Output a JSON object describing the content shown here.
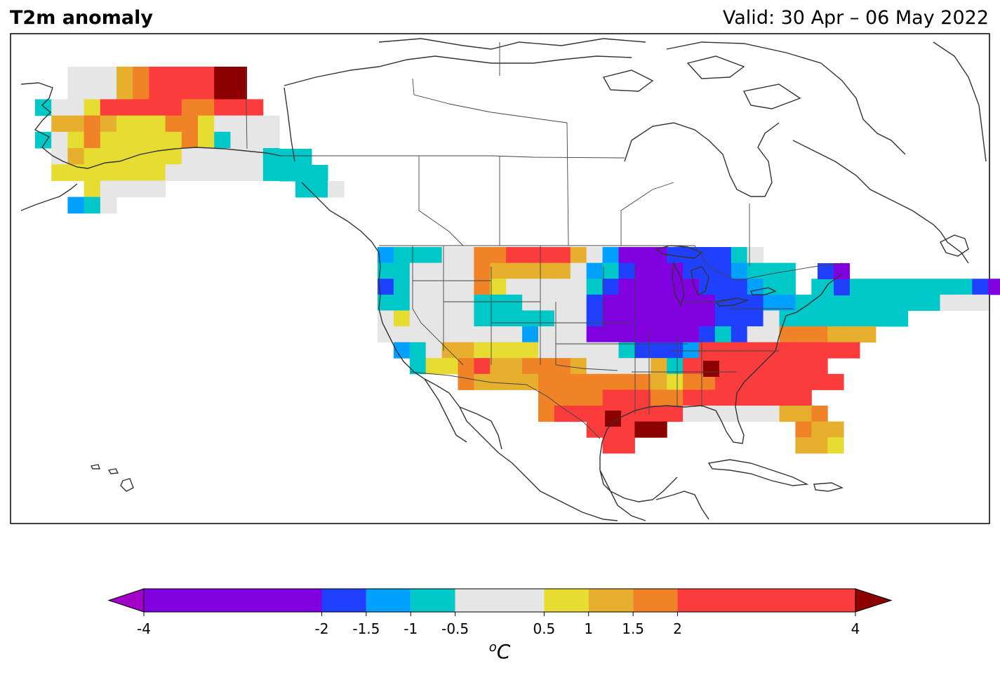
{
  "header": {
    "title": "T2m anomaly",
    "valid": "Valid: 30 Apr – 06 May 2022"
  },
  "colorbar": {
    "unit_label": "oC",
    "unit_base": "C",
    "unit_sup": "o",
    "ticks": [
      "-4",
      "-2",
      "-1.5",
      "-1",
      "-0.5",
      "0.5",
      "1",
      "1.5",
      "2",
      "4"
    ],
    "tick_values": [
      -4,
      -2,
      -1.5,
      -1,
      -0.5,
      0.5,
      1,
      1.5,
      2,
      4
    ],
    "extend": "both",
    "colors": {
      "under": "#a000c8",
      "b_-4_-2": "#8000e0",
      "b_-2_-1.5": "#2040ff",
      "b_-1.5_-1": "#00a0ff",
      "b_-1_-0.5": "#00c8c8",
      "b_-0.5_0.5": "#e6e6e6",
      "b_0.5_1": "#e6dc32",
      "b_1_1.5": "#e6af2d",
      "b_1.5_2": "#f08228",
      "b_2_4": "#fa3c3c",
      "over": "#8c0000"
    }
  },
  "map_data": {
    "region": "North America",
    "variable": "T2m anomaly",
    "cells": {
      "alaska": [
        {
          "lat": 70.5,
          "lon": -160,
          "anom": "white"
        },
        {
          "lat": 70.5,
          "lon": -150,
          "anom": "orange"
        },
        {
          "lat": 70.5,
          "lon": -145,
          "anom": "red"
        },
        {
          "lat": 70.5,
          "lon": -141,
          "anom": "darkred"
        },
        {
          "lat": 67,
          "lon": -155,
          "anom": "red"
        },
        {
          "lat": 64,
          "lon": -160,
          "anom": "yellow"
        },
        {
          "lat": 62,
          "lon": -150,
          "anom": "yellow"
        },
        {
          "lat": 60,
          "lon": -135,
          "anom": "cyan"
        }
      ],
      "conus": [
        {
          "region": "northern-plains",
          "anom": "red"
        },
        {
          "region": "upper-midwest",
          "anom": "purple"
        },
        {
          "region": "great-lakes",
          "anom": "blue"
        },
        {
          "region": "northeast",
          "anom": "cyan"
        },
        {
          "region": "southeast",
          "anom": "red"
        },
        {
          "region": "texas",
          "anom": "red"
        },
        {
          "region": "southwest",
          "anom": "orange"
        },
        {
          "region": "pacific-northwest",
          "anom": "cyan"
        }
      ]
    }
  }
}
